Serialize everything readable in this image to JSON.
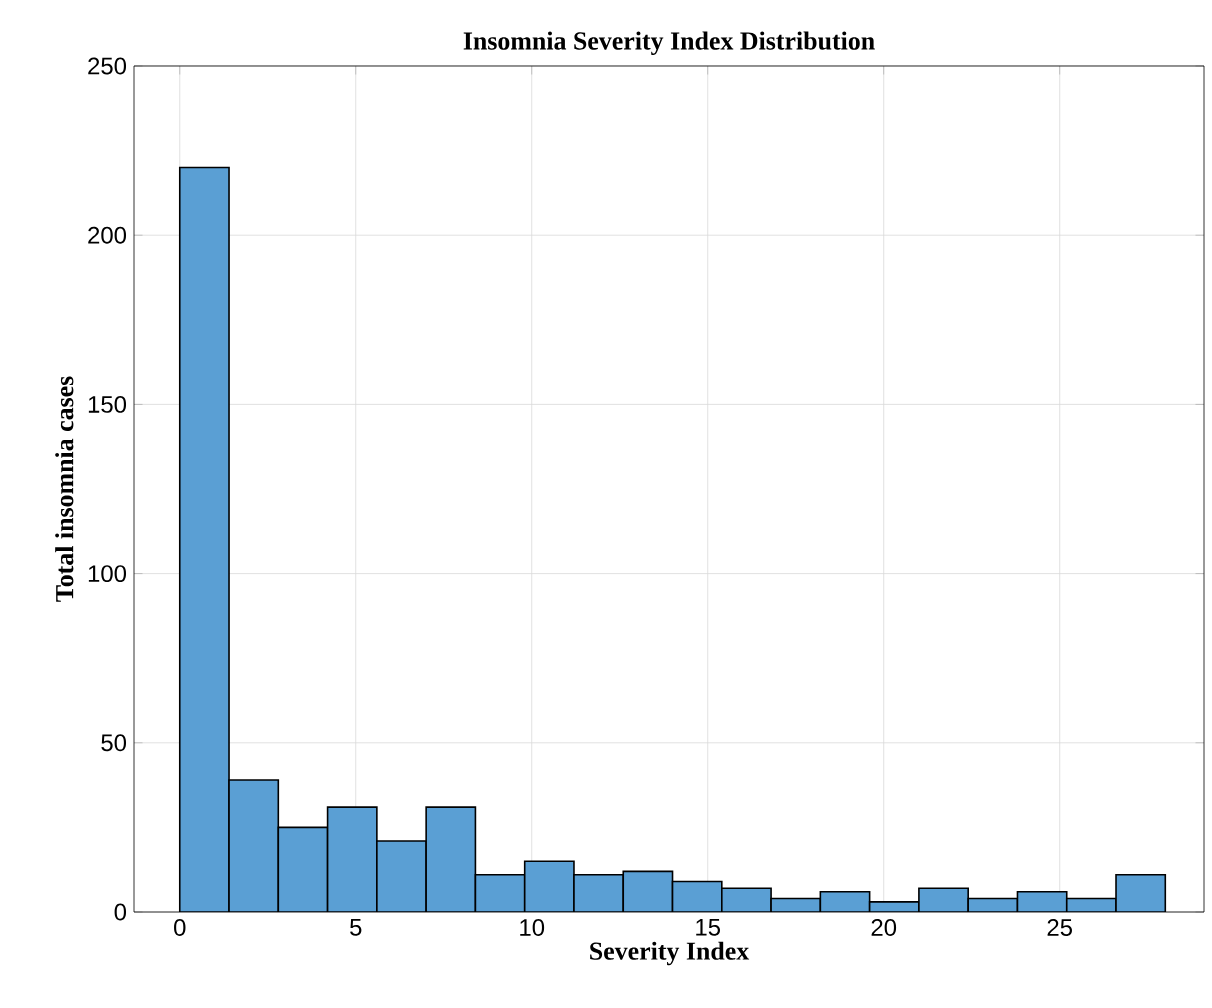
{
  "chart_data": {
    "type": "histogram",
    "title": "Insomnia Severity Index Distribution",
    "xlabel": "Severity Index",
    "ylabel": "Total insomnia cases",
    "bins": [
      0,
      1.4,
      2.8,
      4.2,
      5.6,
      7,
      8.4,
      9.8,
      11.2,
      12.6,
      14,
      15.4,
      16.8,
      18.2,
      19.6,
      21,
      22.4,
      23.8,
      25.2,
      26.6,
      28
    ],
    "values": [
      220,
      39,
      25,
      31,
      21,
      31,
      11,
      15,
      11,
      12,
      9,
      7,
      4,
      6,
      3,
      7,
      4,
      6,
      4,
      11
    ],
    "color": "#5a9fd4",
    "xlim": [
      -1.3,
      29.1
    ],
    "ylim": [
      0,
      250
    ],
    "xticks": [
      0,
      5,
      10,
      15,
      20,
      25
    ],
    "yticks": [
      0,
      50,
      100,
      150,
      200,
      250
    ],
    "grid": true
  }
}
